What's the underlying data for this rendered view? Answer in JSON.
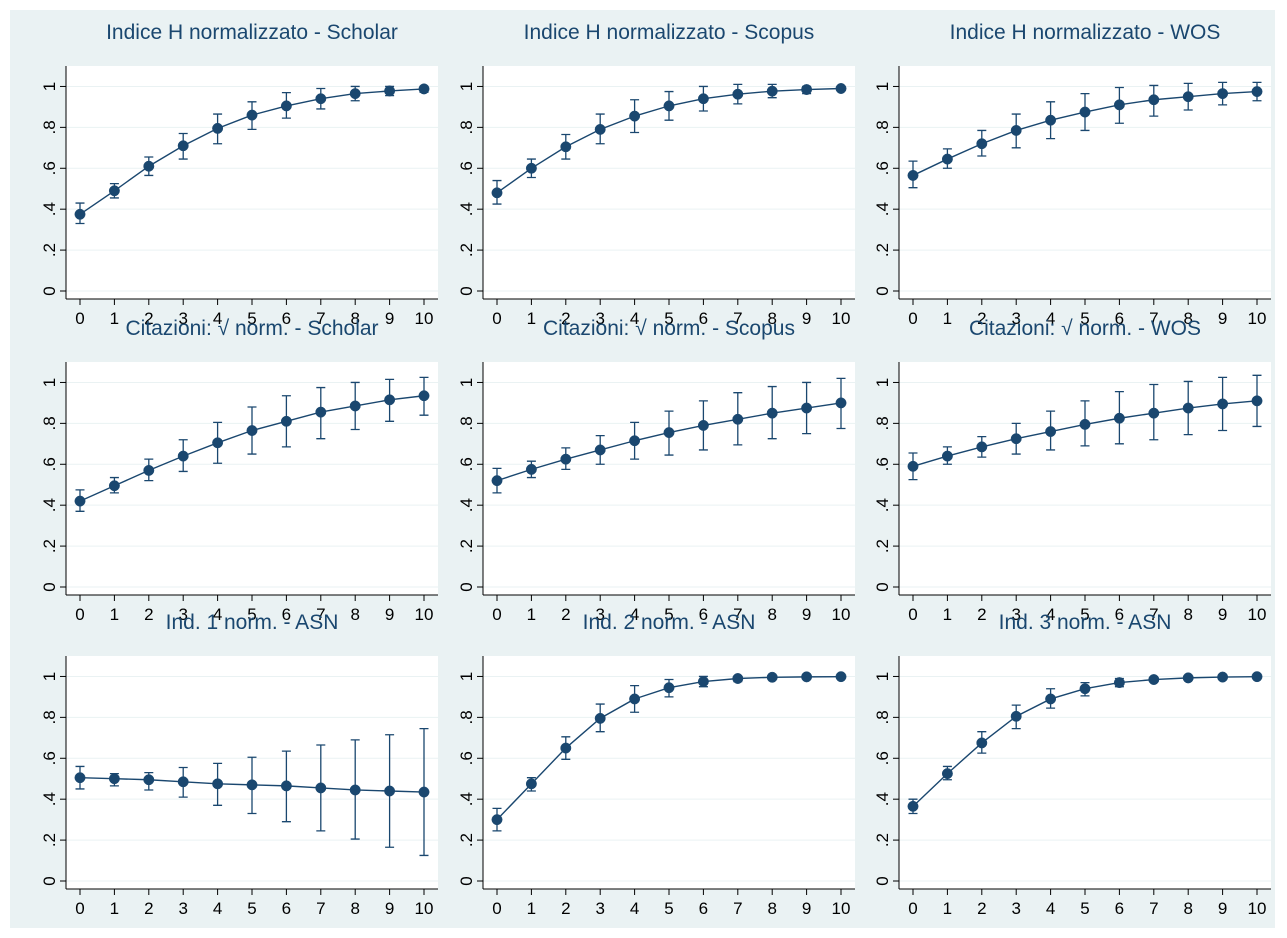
{
  "chart_data": [
    {
      "type": "line",
      "title": "Indice H normalizzato - Scholar",
      "x": [
        0,
        1,
        2,
        3,
        4,
        5,
        6,
        7,
        8,
        9,
        10
      ],
      "y": [
        0.375,
        0.49,
        0.61,
        0.71,
        0.795,
        0.86,
        0.905,
        0.94,
        0.965,
        0.978,
        0.988
      ],
      "lower": [
        0.33,
        0.455,
        0.565,
        0.645,
        0.72,
        0.79,
        0.845,
        0.89,
        0.93,
        0.955,
        0.972
      ],
      "upper": [
        0.43,
        0.525,
        0.655,
        0.77,
        0.865,
        0.925,
        0.97,
        0.99,
        1.0,
        1.0,
        1.0
      ],
      "xticks": [
        "0",
        "1",
        "2",
        "3",
        "4",
        "5",
        "6",
        "7",
        "8",
        "9",
        "10"
      ],
      "yticks": [
        "0",
        ".2",
        ".4",
        ".6",
        ".8",
        "1"
      ],
      "ylim": [
        0,
        1.1
      ],
      "xlim": [
        0,
        10
      ],
      "grid": true
    },
    {
      "type": "line",
      "title": "Indice H normalizzato - Scopus",
      "x": [
        0,
        1,
        2,
        3,
        4,
        5,
        6,
        7,
        8,
        9,
        10
      ],
      "y": [
        0.48,
        0.6,
        0.705,
        0.79,
        0.855,
        0.905,
        0.94,
        0.962,
        0.977,
        0.985,
        0.99
      ],
      "lower": [
        0.425,
        0.555,
        0.645,
        0.72,
        0.775,
        0.835,
        0.88,
        0.915,
        0.945,
        0.965,
        0.98
      ],
      "upper": [
        0.54,
        0.645,
        0.765,
        0.865,
        0.935,
        0.975,
        1.0,
        1.01,
        1.01,
        1.0,
        1.0
      ],
      "xticks": [
        "0",
        "1",
        "2",
        "3",
        "4",
        "5",
        "6",
        "7",
        "8",
        "9",
        "10"
      ],
      "yticks": [
        "0",
        ".2",
        ".4",
        ".6",
        ".8",
        "1"
      ],
      "ylim": [
        0,
        1.1
      ],
      "xlim": [
        0,
        10
      ],
      "grid": true
    },
    {
      "type": "line",
      "title": "Indice H normalizzato - WOS",
      "x": [
        0,
        1,
        2,
        3,
        4,
        5,
        6,
        7,
        8,
        9,
        10
      ],
      "y": [
        0.565,
        0.645,
        0.72,
        0.785,
        0.835,
        0.875,
        0.91,
        0.935,
        0.95,
        0.965,
        0.975
      ],
      "lower": [
        0.505,
        0.6,
        0.66,
        0.7,
        0.745,
        0.785,
        0.82,
        0.855,
        0.885,
        0.91,
        0.93
      ],
      "upper": [
        0.635,
        0.695,
        0.785,
        0.865,
        0.925,
        0.965,
        0.995,
        1.005,
        1.015,
        1.02,
        1.02
      ],
      "xticks": [
        "0",
        "1",
        "2",
        "3",
        "4",
        "5",
        "6",
        "7",
        "8",
        "9",
        "10"
      ],
      "yticks": [
        "0",
        ".2",
        ".4",
        ".6",
        ".8",
        "1"
      ],
      "ylim": [
        0,
        1.1
      ],
      "xlim": [
        0,
        10
      ],
      "grid": true
    },
    {
      "type": "line",
      "title": "Citazioni: √ norm. - Scholar",
      "x": [
        0,
        1,
        2,
        3,
        4,
        5,
        6,
        7,
        8,
        9,
        10
      ],
      "y": [
        0.42,
        0.495,
        0.57,
        0.64,
        0.705,
        0.765,
        0.81,
        0.855,
        0.885,
        0.915,
        0.935
      ],
      "lower": [
        0.37,
        0.46,
        0.52,
        0.565,
        0.605,
        0.65,
        0.685,
        0.725,
        0.77,
        0.81,
        0.84
      ],
      "upper": [
        0.475,
        0.535,
        0.625,
        0.72,
        0.805,
        0.88,
        0.935,
        0.975,
        1.0,
        1.015,
        1.025
      ],
      "xticks": [
        "0",
        "1",
        "2",
        "3",
        "4",
        "5",
        "6",
        "7",
        "8",
        "9",
        "10"
      ],
      "yticks": [
        "0",
        ".2",
        ".4",
        ".6",
        ".8",
        "1"
      ],
      "ylim": [
        0,
        1.1
      ],
      "xlim": [
        0,
        10
      ],
      "grid": true
    },
    {
      "type": "line",
      "title": "Citazioni: √ norm. - Scopus",
      "x": [
        0,
        1,
        2,
        3,
        4,
        5,
        6,
        7,
        8,
        9,
        10
      ],
      "y": [
        0.52,
        0.575,
        0.625,
        0.67,
        0.715,
        0.755,
        0.79,
        0.82,
        0.85,
        0.875,
        0.9
      ],
      "lower": [
        0.46,
        0.535,
        0.575,
        0.6,
        0.625,
        0.645,
        0.67,
        0.695,
        0.725,
        0.75,
        0.775
      ],
      "upper": [
        0.58,
        0.615,
        0.68,
        0.74,
        0.805,
        0.86,
        0.91,
        0.95,
        0.98,
        1.0,
        1.02
      ],
      "xticks": [
        "0",
        "1",
        "2",
        "3",
        "4",
        "5",
        "6",
        "7",
        "8",
        "9",
        "10"
      ],
      "yticks": [
        "0",
        ".2",
        ".4",
        ".6",
        ".8",
        "1"
      ],
      "ylim": [
        0,
        1.1
      ],
      "xlim": [
        0,
        10
      ],
      "grid": true
    },
    {
      "type": "line",
      "title": "Citazioni: √ norm. - WOS",
      "x": [
        0,
        1,
        2,
        3,
        4,
        5,
        6,
        7,
        8,
        9,
        10
      ],
      "y": [
        0.59,
        0.64,
        0.685,
        0.725,
        0.76,
        0.795,
        0.825,
        0.85,
        0.875,
        0.895,
        0.91
      ],
      "lower": [
        0.525,
        0.6,
        0.635,
        0.65,
        0.67,
        0.69,
        0.7,
        0.72,
        0.745,
        0.765,
        0.785
      ],
      "upper": [
        0.655,
        0.685,
        0.735,
        0.8,
        0.86,
        0.91,
        0.955,
        0.99,
        1.005,
        1.025,
        1.035
      ],
      "xticks": [
        "0",
        "1",
        "2",
        "3",
        "4",
        "5",
        "6",
        "7",
        "8",
        "9",
        "10"
      ],
      "yticks": [
        "0",
        ".2",
        ".4",
        ".6",
        ".8",
        "1"
      ],
      "ylim": [
        0,
        1.1
      ],
      "xlim": [
        0,
        10
      ],
      "grid": true
    },
    {
      "type": "line",
      "title": "Ind. 1 norm. - ASN",
      "x": [
        0,
        1,
        2,
        3,
        4,
        5,
        6,
        7,
        8,
        9,
        10
      ],
      "y": [
        0.505,
        0.5,
        0.495,
        0.485,
        0.475,
        0.47,
        0.465,
        0.455,
        0.445,
        0.44,
        0.435
      ],
      "lower": [
        0.45,
        0.465,
        0.445,
        0.41,
        0.37,
        0.33,
        0.29,
        0.245,
        0.205,
        0.165,
        0.125
      ],
      "upper": [
        0.56,
        0.525,
        0.53,
        0.555,
        0.575,
        0.605,
        0.635,
        0.665,
        0.69,
        0.715,
        0.745
      ],
      "xticks": [
        "0",
        "1",
        "2",
        "3",
        "4",
        "5",
        "6",
        "7",
        "8",
        "9",
        "10"
      ],
      "yticks": [
        "0",
        ".2",
        ".4",
        ".6",
        ".8",
        "1"
      ],
      "ylim": [
        0,
        1.1
      ],
      "xlim": [
        0,
        10
      ],
      "grid": true
    },
    {
      "type": "line",
      "title": "Ind. 2 norm. - ASN",
      "x": [
        0,
        1,
        2,
        3,
        4,
        5,
        6,
        7,
        8,
        9,
        10
      ],
      "y": [
        0.3,
        0.475,
        0.65,
        0.795,
        0.89,
        0.945,
        0.975,
        0.99,
        0.996,
        0.998,
        0.999
      ],
      "lower": [
        0.245,
        0.44,
        0.595,
        0.73,
        0.825,
        0.9,
        0.95,
        0.975,
        0.99,
        0.995,
        0.997
      ],
      "upper": [
        0.355,
        0.505,
        0.705,
        0.865,
        0.955,
        0.985,
        1.0,
        1.0,
        1.0,
        1.0,
        1.0
      ],
      "xticks": [
        "0",
        "1",
        "2",
        "3",
        "4",
        "5",
        "6",
        "7",
        "8",
        "9",
        "10"
      ],
      "yticks": [
        "0",
        ".2",
        ".4",
        ".6",
        ".8",
        "1"
      ],
      "ylim": [
        0,
        1.1
      ],
      "xlim": [
        0,
        10
      ],
      "grid": true
    },
    {
      "type": "line",
      "title": "Ind. 3 norm. - ASN",
      "x": [
        0,
        1,
        2,
        3,
        4,
        5,
        6,
        7,
        8,
        9,
        10
      ],
      "y": [
        0.365,
        0.525,
        0.675,
        0.805,
        0.89,
        0.94,
        0.97,
        0.985,
        0.993,
        0.997,
        0.999
      ],
      "lower": [
        0.33,
        0.495,
        0.625,
        0.745,
        0.845,
        0.905,
        0.95,
        0.975,
        0.988,
        0.995,
        0.997
      ],
      "upper": [
        0.4,
        0.56,
        0.73,
        0.86,
        0.94,
        0.97,
        0.99,
        0.995,
        0.999,
        1.0,
        1.0
      ],
      "xticks": [
        "0",
        "1",
        "2",
        "3",
        "4",
        "5",
        "6",
        "7",
        "8",
        "9",
        "10"
      ],
      "yticks": [
        "0",
        ".2",
        ".4",
        ".6",
        ".8",
        "1"
      ],
      "ylim": [
        0,
        1.1
      ],
      "xlim": [
        0,
        10
      ],
      "grid": true
    }
  ]
}
